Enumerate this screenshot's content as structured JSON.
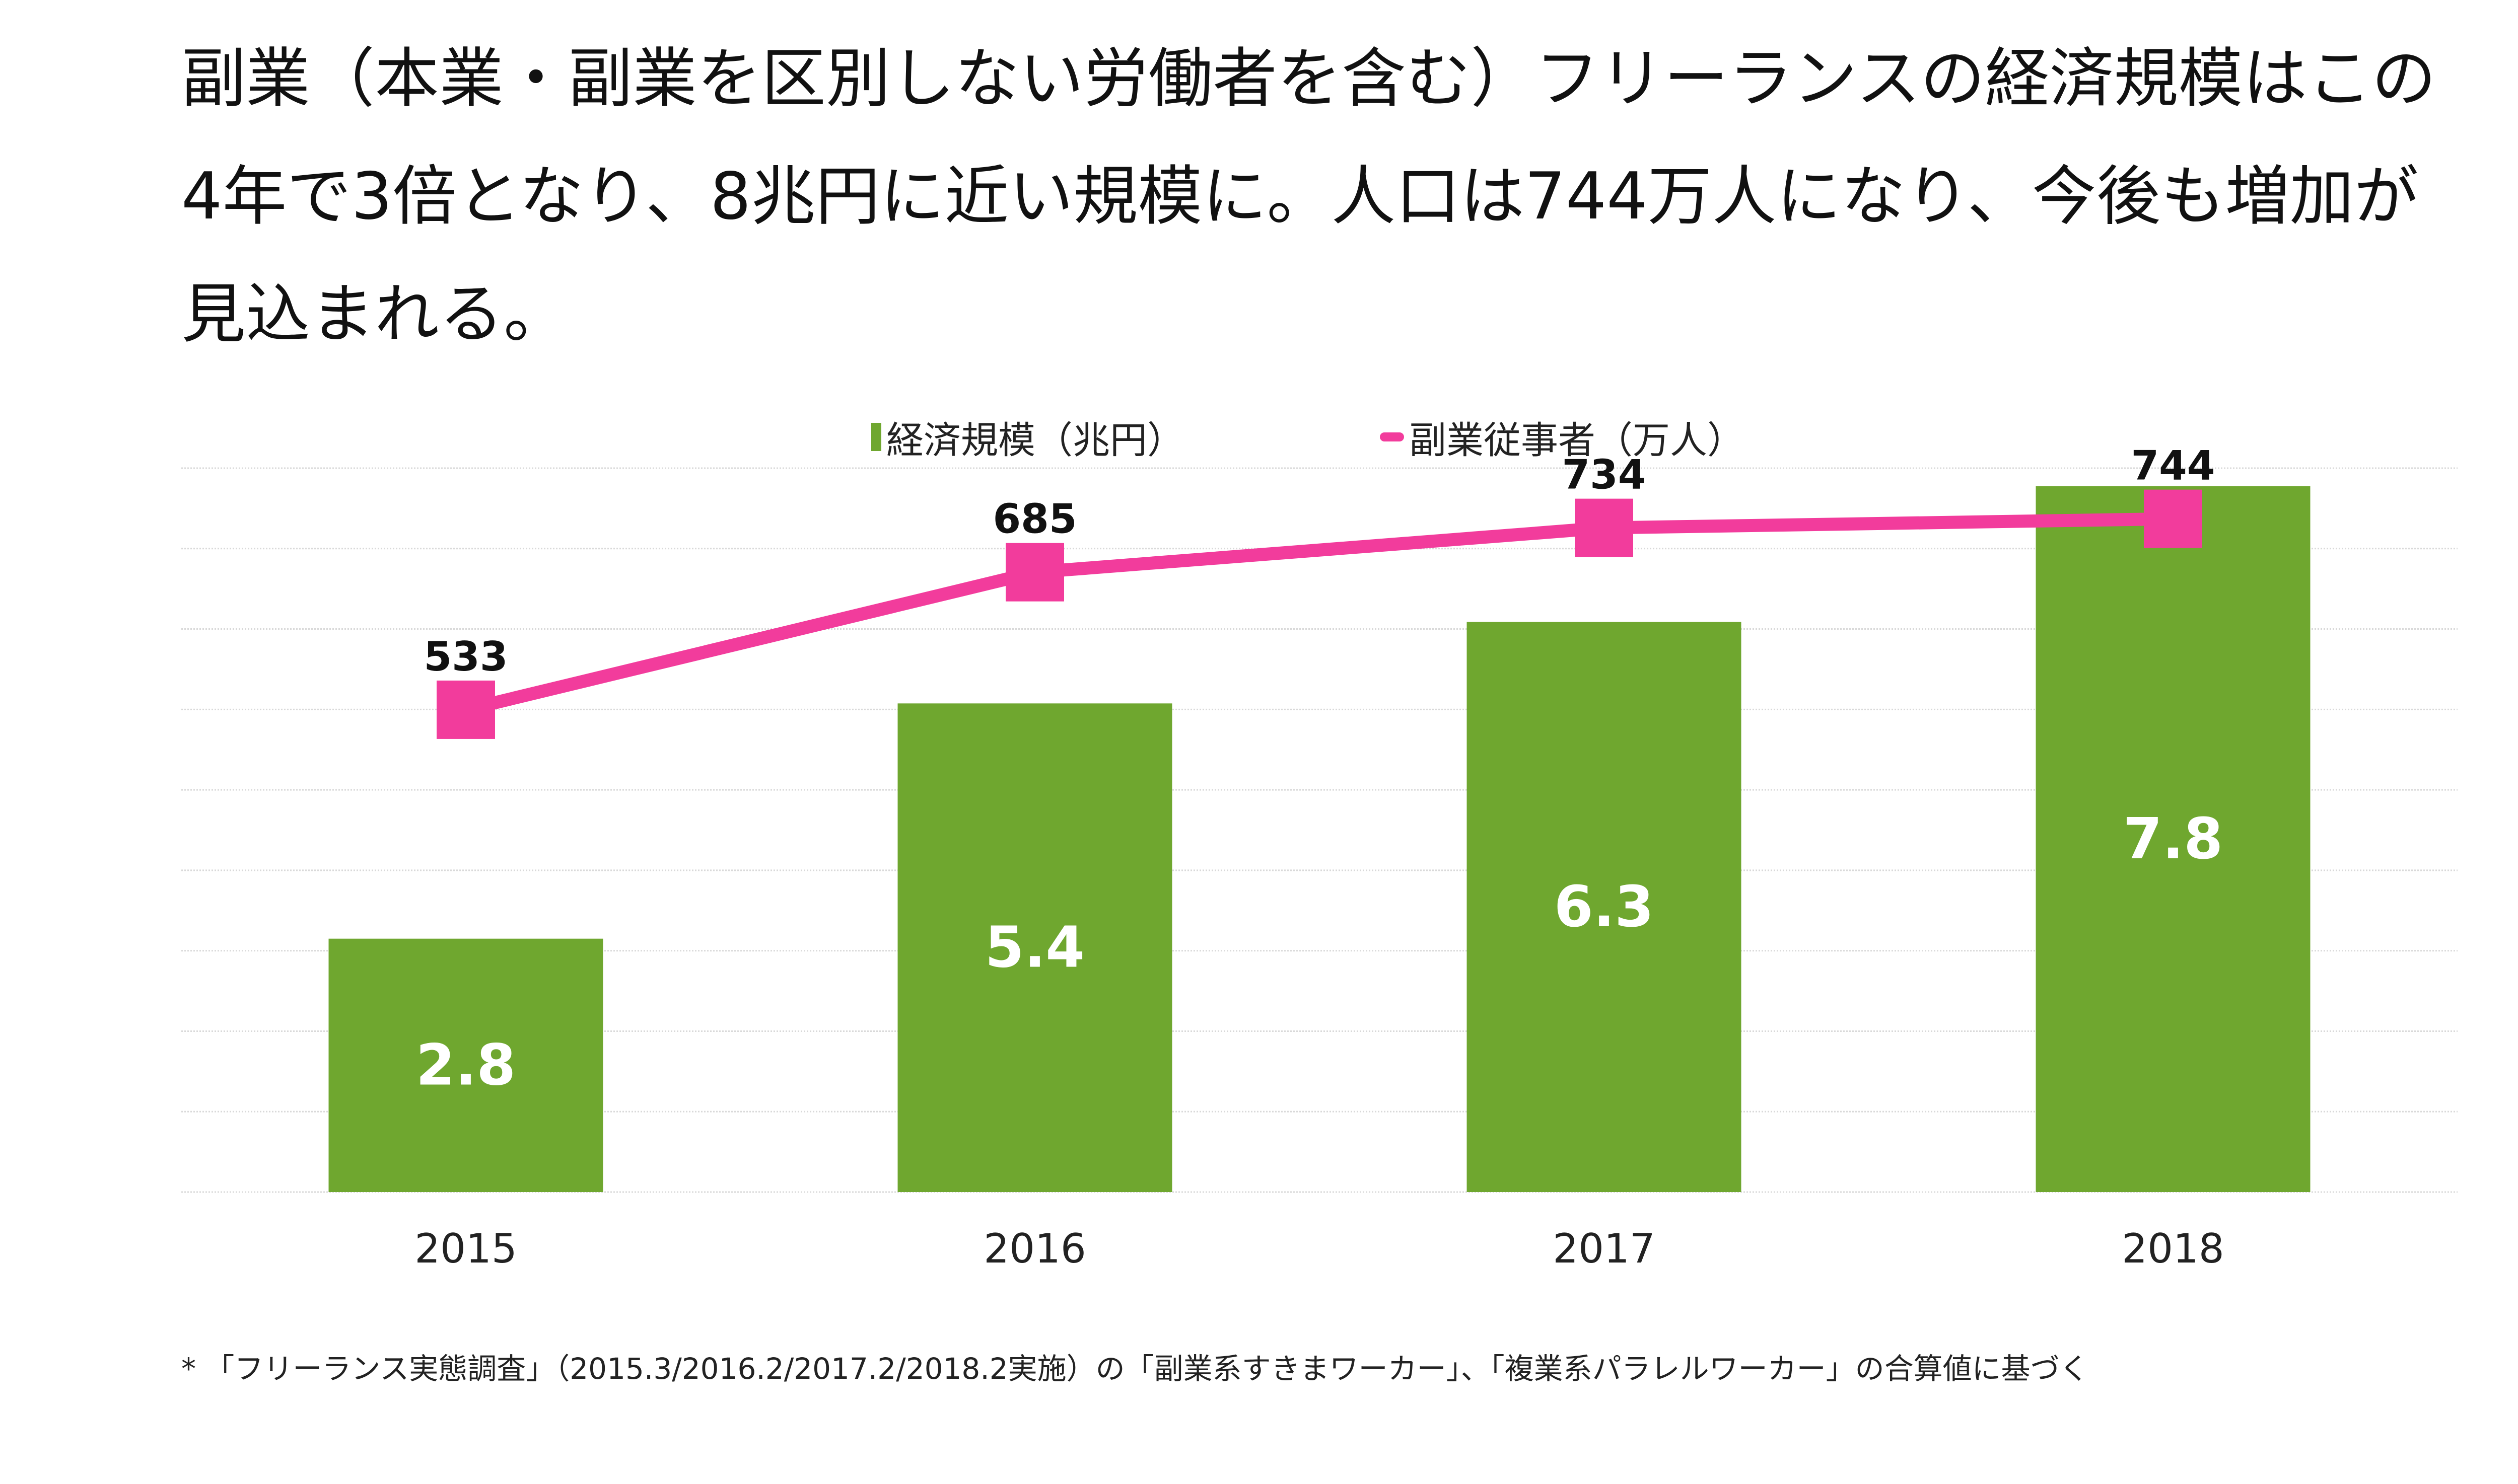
{
  "headline": {
    "line1": "副業（本業・副業を区別しない労働者を含む）フリーランスの経済規模はこの",
    "line2": "4年で3倍となり、8兆円に近い規模に。人口は744万人になり、今後も増加が",
    "line3": "見込まれる。"
  },
  "chart_data": {
    "type": "bar",
    "categories": [
      "2015",
      "2016",
      "2017",
      "2018"
    ],
    "series": [
      {
        "name": "経済規模（兆円）",
        "type": "bar",
        "axis": "left",
        "color": "#6fa72f",
        "values": [
          2.8,
          5.4,
          6.3,
          7.8
        ]
      },
      {
        "name": "副業従事者（万人）",
        "type": "line",
        "axis": "right",
        "color": "#f23c9c",
        "values": [
          533,
          685,
          734,
          744
        ]
      }
    ],
    "ylim": [
      0,
      8
    ],
    "y2lim": [
      0,
      800
    ],
    "grid": true,
    "legend_position": "top-center",
    "title": "",
    "xlabel": "",
    "ylabel": ""
  },
  "footnote": "* 「フリーランス実態調査」（2015.3/2016.2/2017.2/2018.2実施）の「副業系すきまワーカー」、「複業系パラレルワーカー」の合算値に基づく"
}
